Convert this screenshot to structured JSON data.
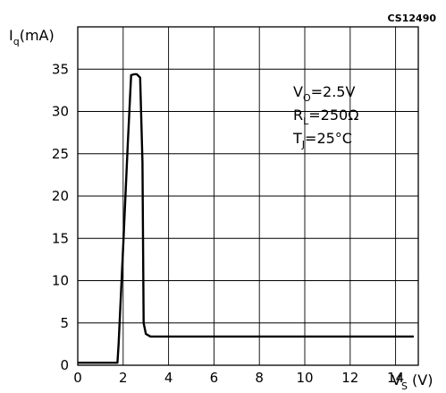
{
  "chart_data": {
    "type": "line",
    "figure_code": "CS12490",
    "ylabel": {
      "main": "I",
      "sub": "q",
      "unit": "(mA)"
    },
    "xlabel": {
      "main": "V",
      "sub": "S",
      "unit": " (V)"
    },
    "xlim": [
      0,
      15
    ],
    "ylim": [
      0,
      40
    ],
    "x_ticks": [
      "0",
      "2",
      "4",
      "6",
      "8",
      "10",
      "12",
      "14"
    ],
    "y_ticks": [
      "0",
      "5",
      "10",
      "15",
      "20",
      "25",
      "30",
      "35"
    ],
    "grid": true,
    "annotations": [
      {
        "main": "V",
        "sub": "O",
        "rest": "=2.5V"
      },
      {
        "main": "R",
        "sub": "L",
        "rest": "=250Ω"
      },
      {
        "main": "T",
        "sub": "J",
        "rest": "=25°C"
      }
    ],
    "series": [
      {
        "x": [
          0,
          1.75,
          1.8,
          2.0,
          2.2,
          2.35,
          2.5,
          2.6,
          2.75,
          2.85,
          2.9,
          3.0,
          3.2,
          3.5,
          5,
          8,
          10,
          12,
          14.8
        ],
        "y": [
          0.3,
          0.3,
          2.5,
          14,
          26,
          34.3,
          34.4,
          34.4,
          34.0,
          24,
          5,
          3.7,
          3.4,
          3.4,
          3.4,
          3.4,
          3.4,
          3.4,
          3.4
        ]
      }
    ]
  }
}
